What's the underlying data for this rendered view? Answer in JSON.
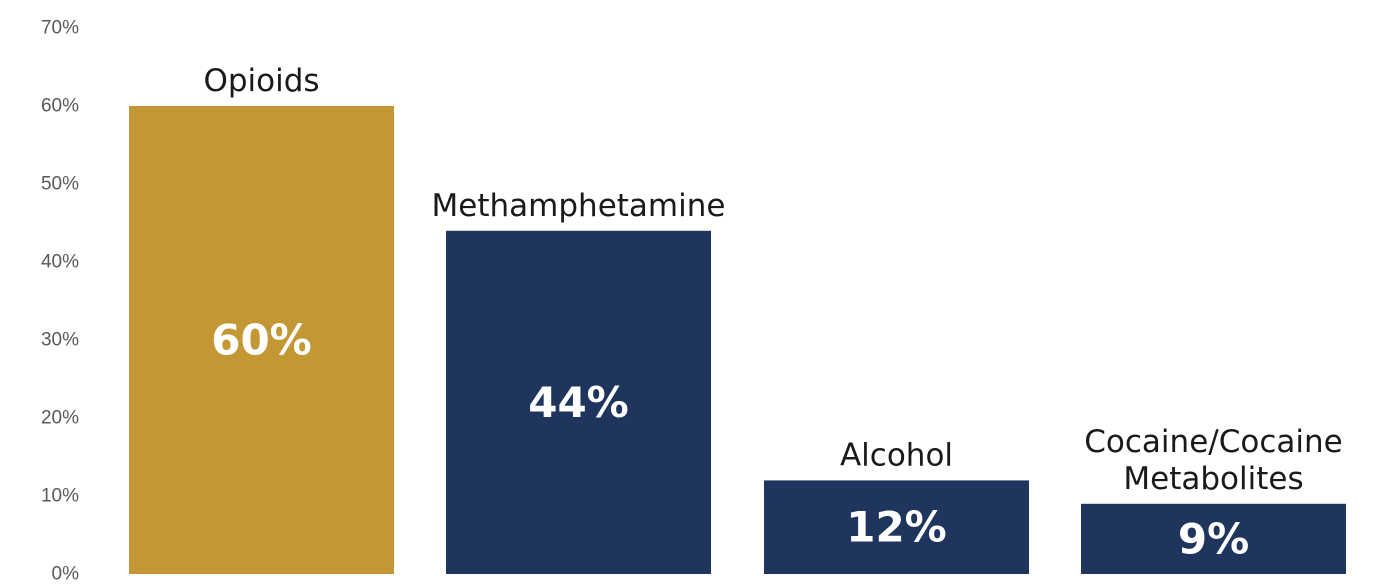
{
  "chart_data": {
    "type": "bar",
    "title": "",
    "xlabel": "",
    "ylabel": "",
    "ylim": [
      0,
      70
    ],
    "ytick_step": 10,
    "ytick_labels": [
      "0%",
      "10%",
      "20%",
      "30%",
      "40%",
      "50%",
      "60%",
      "70%"
    ],
    "grid": false,
    "legend": "none",
    "categories": [
      [
        "Opioids"
      ],
      [
        "Methamphetamine"
      ],
      [
        "Alcohol"
      ],
      [
        "Cocaine/Cocaine",
        "Metabolites"
      ]
    ],
    "values": [
      60,
      44,
      12,
      9
    ],
    "value_labels": [
      "60%",
      "44%",
      "12%",
      "9%"
    ],
    "colors": [
      "#C39734",
      "#1F355D",
      "#1F355D",
      "#1F355D"
    ]
  }
}
